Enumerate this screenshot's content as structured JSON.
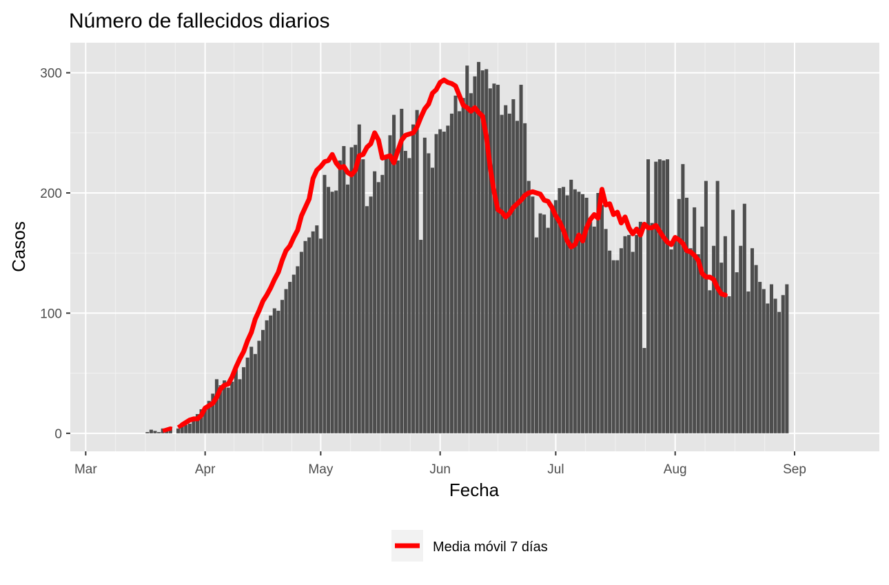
{
  "chart_data": {
    "type": "bar",
    "title": "Número de fallecidos diarios",
    "xlabel": "Fecha",
    "ylabel": "Casos",
    "x_range": [
      "2020-02-26",
      "2020-09-23"
    ],
    "ylim": [
      -15,
      325
    ],
    "y_ticks": [
      0,
      100,
      200,
      300
    ],
    "x_ticks": [
      {
        "label": "Mar",
        "date": "2020-03-01"
      },
      {
        "label": "Apr",
        "date": "2020-04-01"
      },
      {
        "label": "May",
        "date": "2020-05-01"
      },
      {
        "label": "Jun",
        "date": "2020-06-01"
      },
      {
        "label": "Jul",
        "date": "2020-07-01"
      },
      {
        "label": "Aug",
        "date": "2020-08-01"
      },
      {
        "label": "Sep",
        "date": "2020-09-01"
      }
    ],
    "grid": true,
    "legend_position": "bottom",
    "bars": {
      "start_date": "2020-03-16",
      "color": "#4d4d4d",
      "values": [
        0,
        1,
        3,
        2,
        1,
        4,
        2,
        5,
        0,
        4,
        7,
        7,
        8,
        13,
        16,
        20,
        21,
        27,
        33,
        45,
        40,
        44,
        38,
        43,
        57,
        45,
        55,
        63,
        72,
        66,
        77,
        86,
        94,
        98,
        104,
        102,
        111,
        120,
        126,
        132,
        139,
        151,
        160,
        163,
        168,
        173,
        162,
        215,
        205,
        201,
        202,
        227,
        239,
        207,
        238,
        240,
        257,
        228,
        189,
        197,
        218,
        209,
        215,
        230,
        248,
        265,
        227,
        270,
        235,
        229,
        257,
        269,
        161,
        246,
        233,
        221,
        249,
        253,
        251,
        256,
        266,
        281,
        268,
        279,
        306,
        283,
        297,
        309,
        302,
        303,
        287,
        291,
        290,
        265,
        273,
        266,
        278,
        260,
        290,
        258,
        210,
        197,
        163,
        183,
        182,
        171,
        189,
        194,
        204,
        205,
        198,
        211,
        203,
        201,
        199,
        196,
        176,
        172,
        200,
        190,
        170,
        152,
        144,
        144,
        154,
        164,
        165,
        151,
        165,
        176,
        71,
        228,
        175,
        226,
        228,
        227,
        228,
        153,
        163,
        195,
        224,
        196,
        154,
        188,
        149,
        172,
        210,
        119,
        156,
        210,
        142,
        164,
        114,
        186,
        134,
        156,
        191,
        118,
        154,
        140,
        126,
        120,
        108,
        124,
        112,
        101,
        115,
        124
      ]
    },
    "series": [
      {
        "name": "Media móvil 7 días",
        "color": "#ff0000",
        "start_date": "2020-03-21",
        "values": [
          2,
          3,
          4,
          3,
          5,
          7,
          9,
          11,
          12,
          12,
          15,
          21,
          23,
          25,
          30,
          37,
          40,
          41,
          47,
          55,
          62,
          68,
          77,
          84,
          95,
          102,
          110,
          115,
          121,
          128,
          134,
          144,
          152,
          156,
          163,
          169,
          181,
          188,
          195,
          212,
          219,
          222,
          226,
          227,
          232,
          225,
          221,
          222,
          217,
          215,
          219,
          231,
          232,
          238,
          241,
          250,
          244,
          229,
          230,
          231,
          225,
          235,
          244,
          248,
          249,
          250,
          255,
          263,
          270,
          274,
          283,
          286,
          292,
          294,
          292,
          291,
          289,
          281,
          273,
          271,
          268,
          271,
          267,
          264,
          247,
          221,
          201,
          186,
          184,
          180,
          183,
          188,
          191,
          194,
          198,
          200,
          201,
          200,
          199,
          194,
          193,
          188,
          181,
          176,
          169,
          160,
          155,
          157,
          165,
          160,
          171,
          178,
          182,
          179,
          203,
          190,
          191,
          182,
          184,
          175,
          180,
          171,
          166,
          170,
          165,
          174,
          171,
          171,
          173,
          168,
          163,
          159,
          157,
          163,
          161,
          158,
          152,
          151,
          148,
          144,
          133,
          130,
          130,
          128,
          121,
          116,
          115
        ],
        "dashed_until": 5
      }
    ]
  }
}
